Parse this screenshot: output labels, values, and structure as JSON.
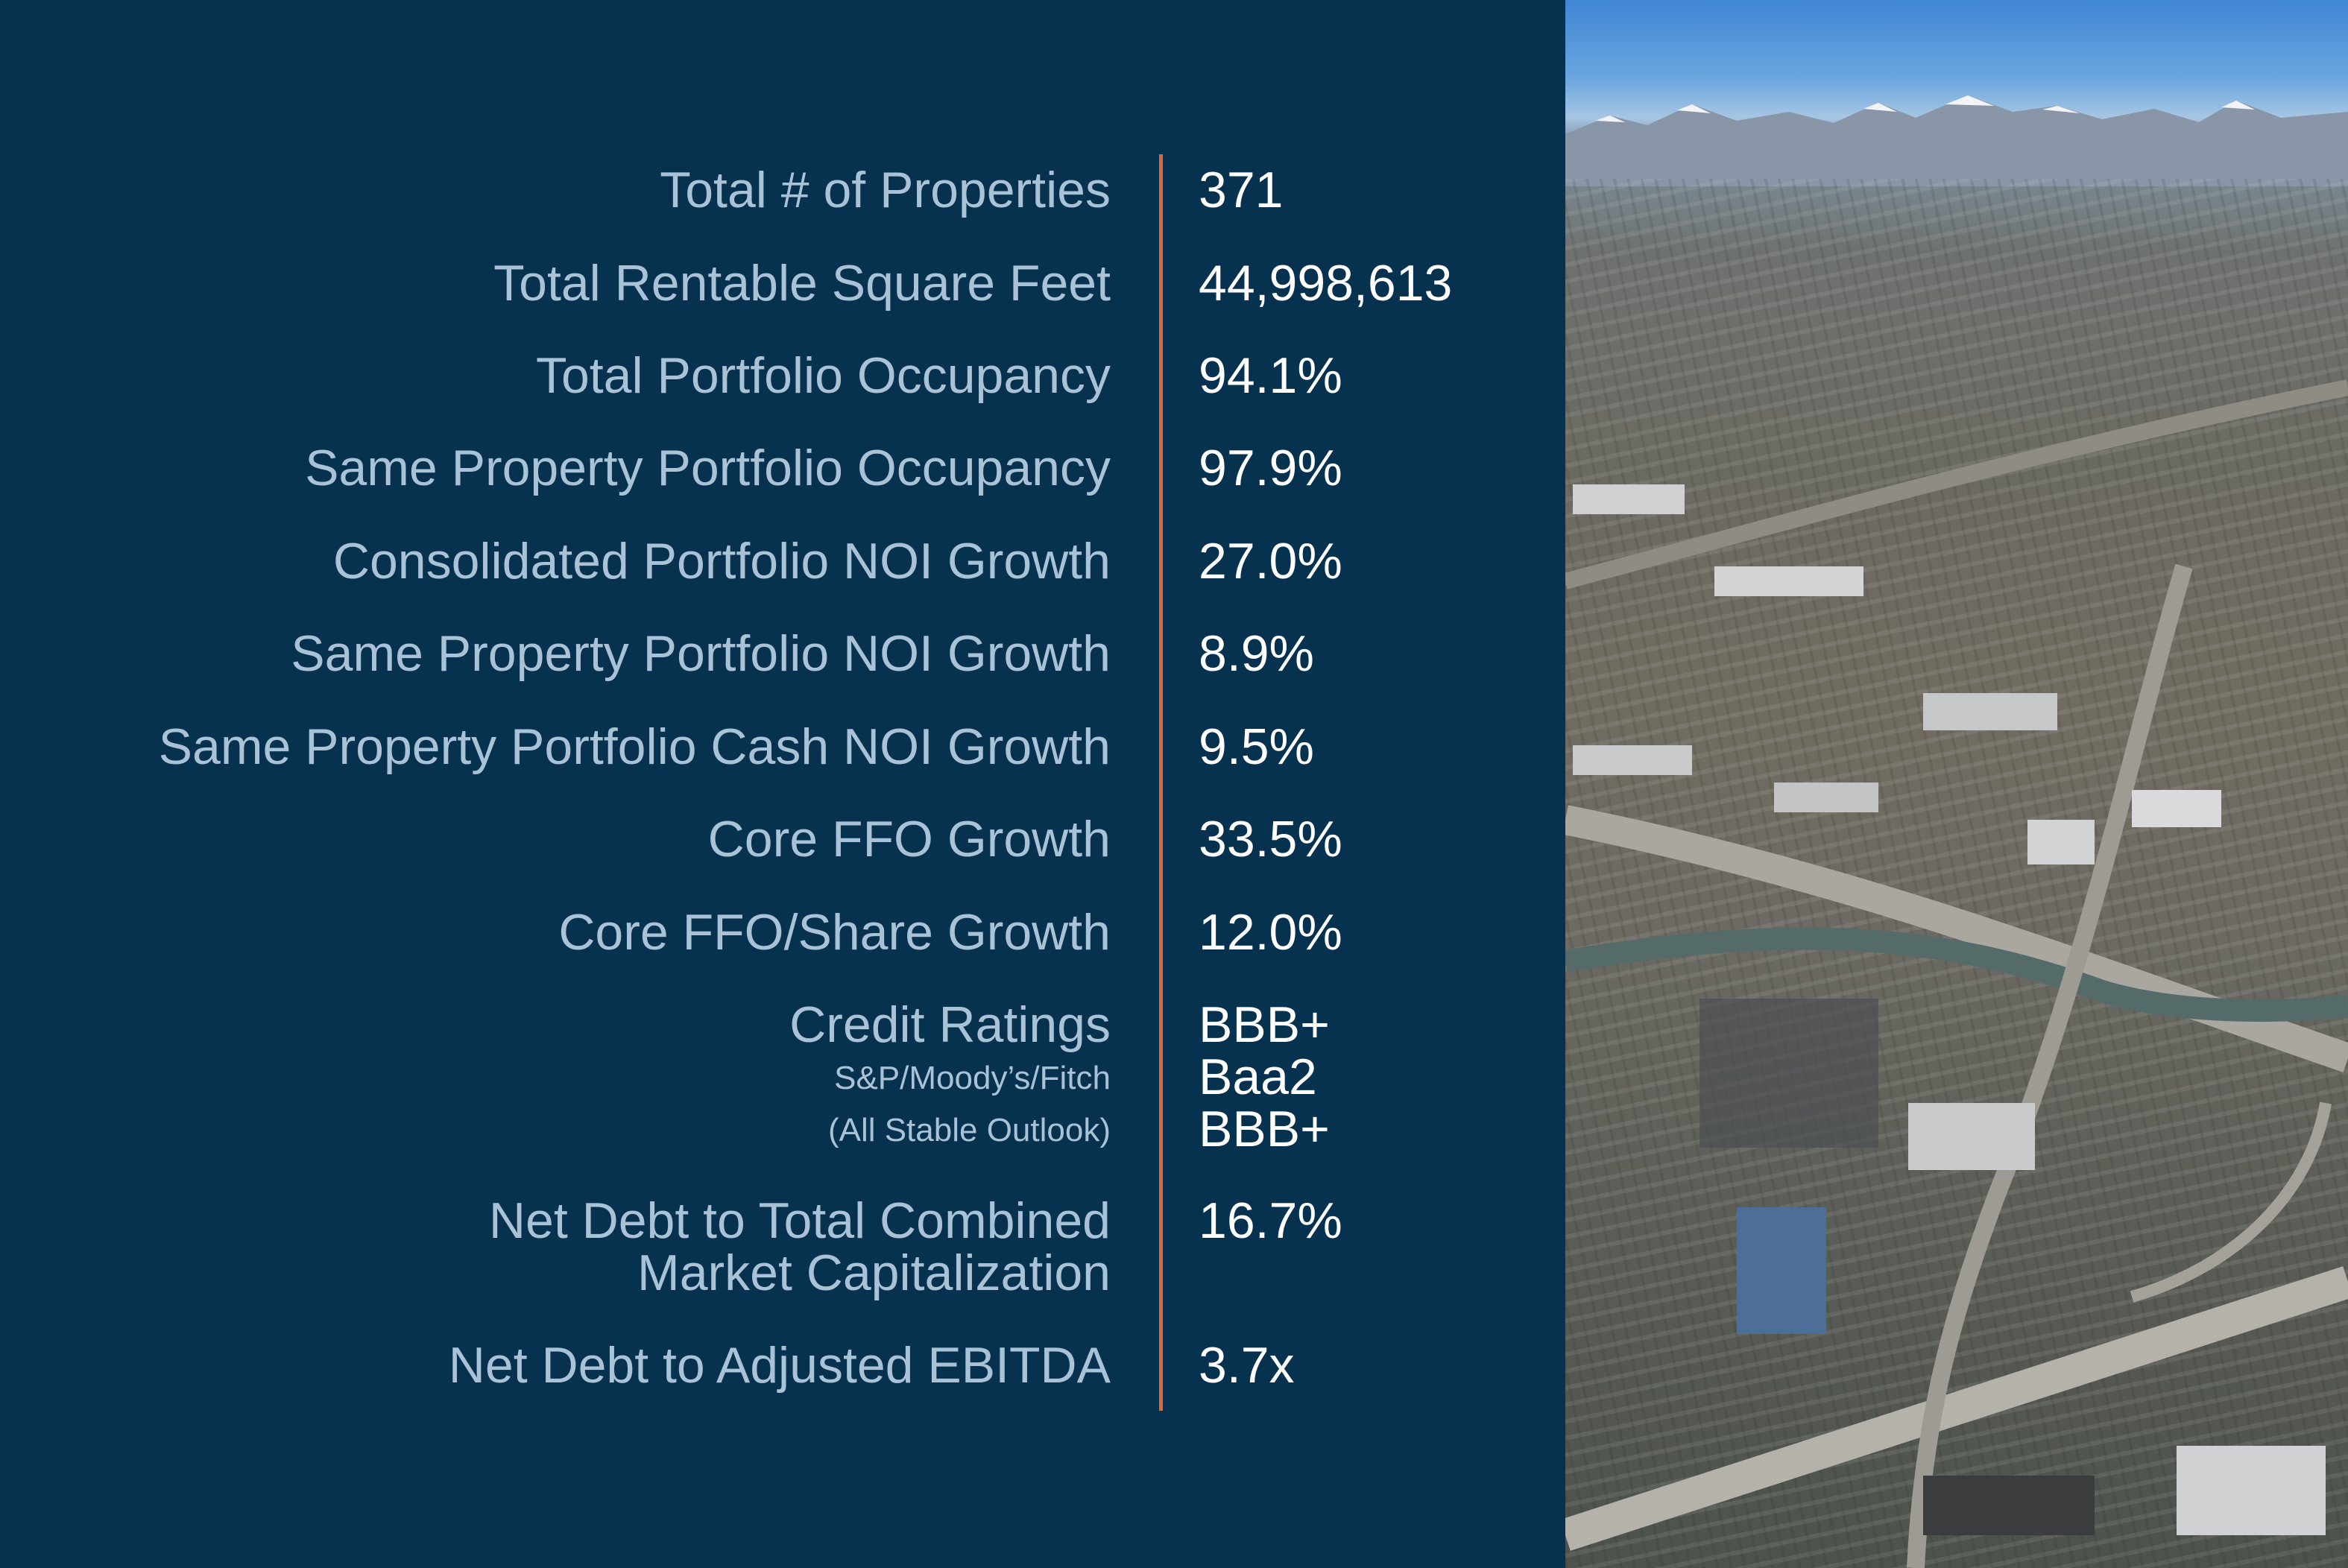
{
  "stats": [
    {
      "label": "Total # of Properties",
      "value": "371"
    },
    {
      "label": "Total Rentable Square Feet",
      "value": "44,998,613"
    },
    {
      "label": "Total Portfolio Occupancy",
      "value": "94.1%"
    },
    {
      "label": "Same Property Portfolio Occupancy",
      "value": "97.9%"
    },
    {
      "label": "Consolidated Portfolio NOI Growth",
      "value": "27.0%"
    },
    {
      "label": "Same Property Portfolio NOI Growth",
      "value": "8.9%"
    },
    {
      "label": "Same Property Portfolio Cash NOI Growth",
      "value": "9.5%"
    },
    {
      "label": "Core FFO Growth",
      "value": "33.5%"
    },
    {
      "label": "Core FFO/Share Growth",
      "value": "12.0%"
    }
  ],
  "credit": {
    "label": "Credit Ratings",
    "sublabel_1": "S&P/Moody’s/Fitch",
    "sublabel_2": "(All Stable Outlook)",
    "values": [
      "BBB+",
      "Baa2",
      "BBB+"
    ]
  },
  "net_debt_cap": {
    "label_line1": "Net Debt to Total Combined",
    "label_line2": "Market Capitalization",
    "value": "16.7%"
  },
  "net_debt_ebitda": {
    "label": "Net Debt to Adjusted EBITDA",
    "value": "3.7x"
  },
  "colors": {
    "panel_background": "#06324f",
    "label_text": "#a9c2d6",
    "value_text": "#ffffff",
    "divider": "#e0683f"
  }
}
